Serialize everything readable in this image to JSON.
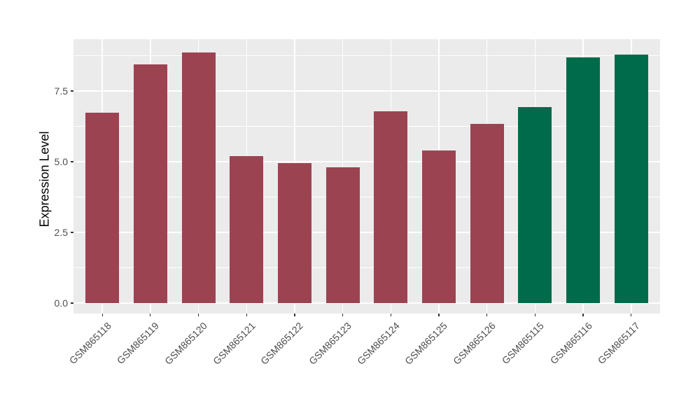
{
  "chart_data": {
    "type": "bar",
    "title": "",
    "xlabel": "",
    "ylabel": "Expression Level",
    "categories": [
      "GSM865118",
      "GSM865119",
      "GSM865120",
      "GSM865121",
      "GSM865122",
      "GSM865123",
      "GSM865124",
      "GSM865125",
      "GSM865126",
      "GSM865115",
      "GSM865116",
      "GSM865117"
    ],
    "values": [
      6.73,
      8.43,
      8.86,
      5.19,
      4.96,
      4.81,
      6.78,
      5.39,
      6.33,
      6.93,
      8.7,
      8.78
    ],
    "bar_color_keys": [
      "red_group",
      "red_group",
      "red_group",
      "red_group",
      "red_group",
      "red_group",
      "red_group",
      "red_group",
      "red_group",
      "green_group",
      "green_group",
      "green_group"
    ],
    "colors": {
      "red_group": "#9C4352",
      "green_group": "#006B4A",
      "panel_background": "#EBEBEB",
      "gridline": "#FFFFFF",
      "tick_mark": "#333333",
      "tick_label": "#4D4D4D",
      "axis_title": "#000000"
    },
    "y_major_ticks": [
      0.0,
      2.5,
      5.0,
      7.5
    ],
    "y_tick_labels": [
      "0.0",
      "2.5",
      "5.0",
      "7.5"
    ],
    "y_minor_ticks": [
      1.25,
      3.75,
      6.25,
      8.75
    ],
    "ylim": [
      -0.39,
      9.33
    ],
    "bar_width_fraction": 0.7,
    "grid": true,
    "legend": "none"
  }
}
